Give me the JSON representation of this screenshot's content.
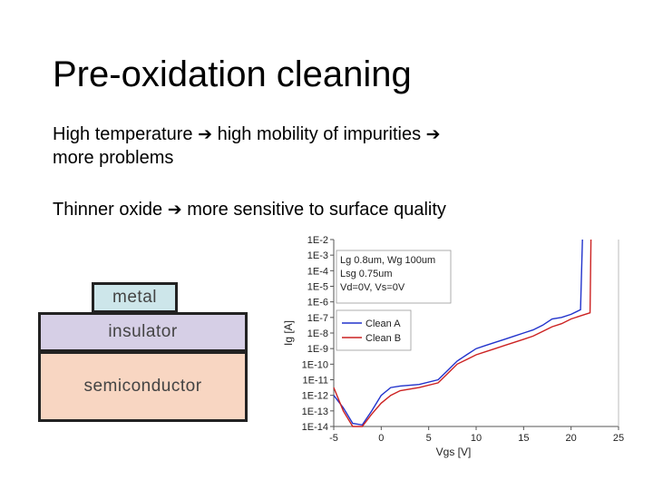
{
  "slide": {
    "title": "Pre-oxidation cleaning",
    "bullet1": {
      "part1": "High temperature",
      "part2": "high mobility of impurities",
      "part3": "more problems"
    },
    "bullet2": {
      "part1": "Thinner oxide",
      "part2": "more sensitive to surface quality"
    },
    "arrow_glyph": "➔",
    "arrow_icon": "right-arrow-icon"
  },
  "diagram": {
    "metal": "metal",
    "insulator": "insulator",
    "semiconductor": "semiconductor",
    "colors": {
      "metal": "#cde6ea",
      "insulator": "#d6cfe6",
      "semiconductor": "#f8d6c2"
    }
  },
  "chart_data": {
    "type": "line",
    "title": "",
    "xlabel": "Vgs [V]",
    "ylabel": "Ig [A]",
    "xlim": [
      -5,
      25
    ],
    "ylim_log10": [
      -14,
      -2
    ],
    "x_ticks": [
      "-5",
      "0",
      "5",
      "10",
      "15",
      "20",
      "25"
    ],
    "y_ticks": [
      "1E-2",
      "1E-3",
      "1E-4",
      "1E-5",
      "1E-6",
      "1E-7",
      "1E-8",
      "1E-9",
      "1E-10",
      "1E-11",
      "1E-12",
      "1E-13",
      "1E-14"
    ],
    "annotation": [
      "Lg 0.8um, Wg 100um",
      "Lsg 0.75um",
      "Vd=0V, Vs=0V"
    ],
    "legend_position": "middle-left",
    "series": [
      {
        "name": "Clean A",
        "color": "#2233cc",
        "x": [
          -5,
          -4,
          -3,
          -2,
          -1,
          0,
          1,
          2,
          4,
          6,
          7,
          8,
          9,
          10,
          11,
          12,
          13,
          14,
          15,
          16,
          17,
          18,
          19,
          20,
          21,
          21.2
        ],
        "y": [
          "1E-12",
          "1E-12.8",
          "1E-13.8",
          "1E-13.9",
          "1E-13",
          "1E-12",
          "1E-11.5",
          "1E-11.4",
          "1E-11.3",
          "1E-11",
          "1E-10.4",
          "1E-9.8",
          "1E-9.4",
          "1E-9.0",
          "1E-8.8",
          "1E-8.6",
          "1E-8.4",
          "1E-8.2",
          "1E-8.0",
          "1E-7.8",
          "1E-7.5",
          "1E-7.1",
          "1E-7.0",
          "1E-6.8",
          "1E-6.5",
          "1E-2"
        ]
      },
      {
        "name": "Clean B",
        "color": "#cc2222",
        "x": [
          -5,
          -4,
          -3,
          -2,
          -1,
          0,
          1,
          2,
          4,
          6,
          7,
          8,
          9,
          10,
          11,
          12,
          13,
          14,
          15,
          16,
          17,
          18,
          19,
          20,
          21,
          22,
          22.1
        ],
        "y": [
          "1E-11.5",
          "1E-13",
          "1E-14",
          "1E-14",
          "1E-13.2",
          "1E-12.5",
          "1E-12",
          "1E-11.7",
          "1E-11.5",
          "1E-11.2",
          "1E-10.6",
          "1E-10",
          "1E-9.7",
          "1E-9.4",
          "1E-9.2",
          "1E-9.0",
          "1E-8.8",
          "1E-8.6",
          "1E-8.4",
          "1E-8.2",
          "1E-7.9",
          "1E-7.6",
          "1E-7.4",
          "1E-7.1",
          "1E-6.9",
          "1E-6.7",
          "1E-2"
        ]
      }
    ],
    "grid": false
  }
}
